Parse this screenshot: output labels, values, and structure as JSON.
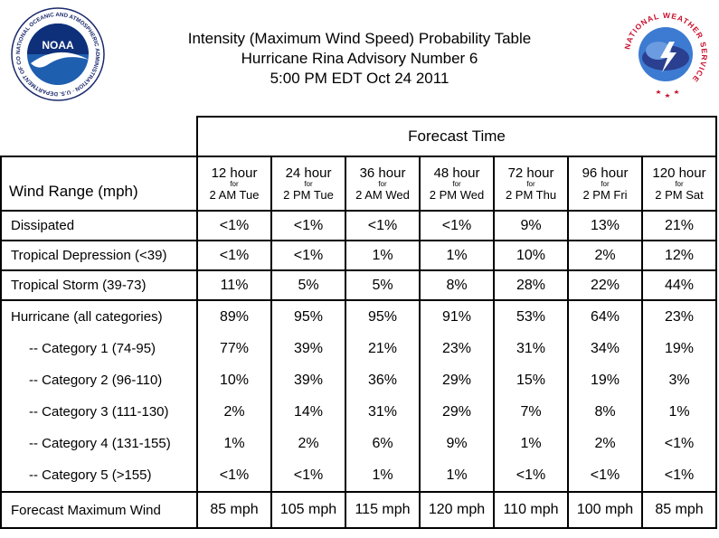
{
  "title_lines": [
    "Intensity (Maximum Wind Speed) Probability Table",
    "Hurricane Rina Advisory Number 6",
    "5:00 PM EDT Oct 24 2011"
  ],
  "logos": {
    "left": "NOAA",
    "left_ring": "NATIONAL OCEANIC AND ATMOSPHERIC ADMINISTRATION · U.S. DEPARTMENT OF COMMERCE",
    "right": "NATIONAL WEATHER SERVICE"
  },
  "table": {
    "forecast_time_label": "Forecast Time",
    "wind_range_label": "Wind Range (mph)",
    "for_label": "for",
    "columns": [
      {
        "hour": "12 hour",
        "date": "2 AM Tue"
      },
      {
        "hour": "24 hour",
        "date": "2 PM Tue"
      },
      {
        "hour": "36 hour",
        "date": "2 AM Wed"
      },
      {
        "hour": "48 hour",
        "date": "2 PM Wed"
      },
      {
        "hour": "72 hour",
        "date": "2 PM Thu"
      },
      {
        "hour": "96 hour",
        "date": "2 PM Fri"
      },
      {
        "hour": "120 hour",
        "date": "2 PM Sat"
      }
    ],
    "rows": {
      "dissipated": {
        "label": "Dissipated",
        "values": [
          "<1%",
          "<1%",
          "<1%",
          "<1%",
          "9%",
          "13%",
          "21%"
        ]
      },
      "td": {
        "label": "Tropical Depression (<39)",
        "values": [
          "<1%",
          "<1%",
          "1%",
          "1%",
          "10%",
          "2%",
          "12%"
        ]
      },
      "ts": {
        "label": "Tropical Storm (39-73)",
        "values": [
          "11%",
          "5%",
          "5%",
          "8%",
          "28%",
          "22%",
          "44%"
        ]
      },
      "hurricane": [
        {
          "label": "Hurricane (all categories)",
          "values": [
            "89%",
            "95%",
            "95%",
            "91%",
            "53%",
            "64%",
            "23%"
          ]
        },
        {
          "label": "-- Category 1 (74-95)",
          "values": [
            "77%",
            "39%",
            "21%",
            "23%",
            "31%",
            "34%",
            "19%"
          ]
        },
        {
          "label": "-- Category 2 (96-110)",
          "values": [
            "10%",
            "39%",
            "36%",
            "29%",
            "15%",
            "19%",
            "3%"
          ]
        },
        {
          "label": "-- Category 3 (111-130)",
          "values": [
            "2%",
            "14%",
            "31%",
            "29%",
            "7%",
            "8%",
            "1%"
          ]
        },
        {
          "label": "-- Category 4 (131-155)",
          "values": [
            "1%",
            "2%",
            "6%",
            "9%",
            "1%",
            "2%",
            "<1%"
          ]
        },
        {
          "label": "-- Category 5 (>155)",
          "values": [
            "<1%",
            "<1%",
            "1%",
            "1%",
            "<1%",
            "<1%",
            "<1%"
          ]
        }
      ],
      "maxwind": {
        "label": "Forecast Maximum Wind",
        "values": [
          "85 mph",
          "105 mph",
          "115 mph",
          "120 mph",
          "110 mph",
          "100 mph",
          "85 mph"
        ]
      }
    }
  }
}
